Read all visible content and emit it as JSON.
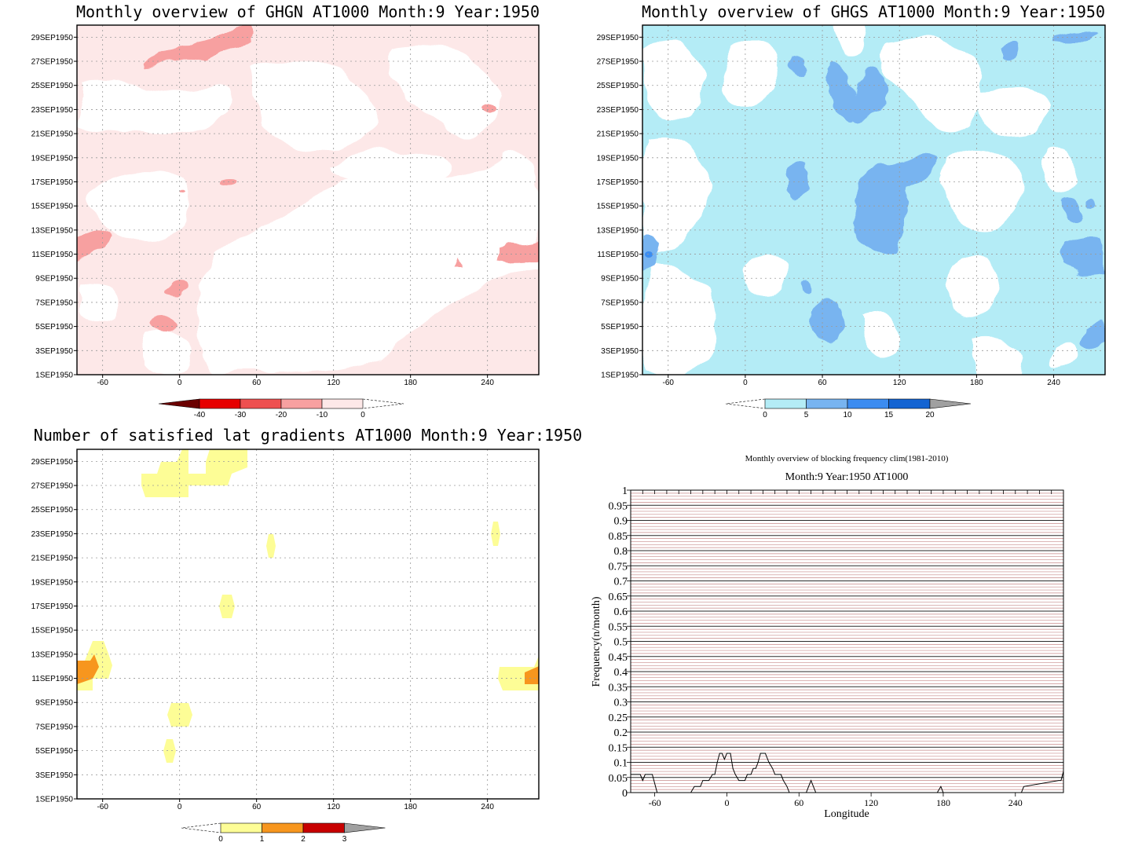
{
  "chart_data": [
    {
      "type": "heatmap",
      "title": "Monthly overview of GHGN AT1000 Month:9 Year:1950",
      "xticks": [
        "-60",
        "0",
        "60",
        "120",
        "180",
        "240"
      ],
      "yticks": [
        "1SEP1950",
        "3SEP1950",
        "5SEP1950",
        "7SEP1950",
        "9SEP1950",
        "11SEP1950",
        "13SEP1950",
        "15SEP1950",
        "17SEP1950",
        "19SEP1950",
        "21SEP1950",
        "23SEP1950",
        "25SEP1950",
        "27SEP1950",
        "29SEP1950"
      ],
      "xlim": [
        -80,
        280
      ],
      "grid": true,
      "colorbar": {
        "labels": [
          "-40",
          "-30",
          "-20",
          "-10",
          "0"
        ],
        "colors": [
          "#6b0000",
          "#e60000",
          "#ee5050",
          "#f7a0a0",
          "#fde8e8"
        ]
      }
    },
    {
      "type": "heatmap",
      "title": "Monthly overview of GHGS AT1000 Month:9 Year:1950",
      "xticks": [
        "-60",
        "0",
        "60",
        "120",
        "180",
        "240"
      ],
      "yticks": [
        "1SEP1950",
        "3SEP1950",
        "5SEP1950",
        "7SEP1950",
        "9SEP1950",
        "11SEP1950",
        "13SEP1950",
        "15SEP1950",
        "17SEP1950",
        "19SEP1950",
        "21SEP1950",
        "23SEP1950",
        "25SEP1950",
        "27SEP1950",
        "29SEP1950"
      ],
      "xlim": [
        -80,
        280
      ],
      "grid": true,
      "colorbar": {
        "labels": [
          "0",
          "5",
          "10",
          "15",
          "20"
        ],
        "colors": [
          "#b4ecf6",
          "#78b4f0",
          "#3c8cf0",
          "#1464d2",
          "#a0a0a0"
        ]
      }
    },
    {
      "type": "heatmap",
      "title": "Number of satisfied lat gradients AT1000 Month:9 Year:1950",
      "xticks": [
        "-60",
        "0",
        "60",
        "120",
        "180",
        "240"
      ],
      "yticks": [
        "1SEP1950",
        "3SEP1950",
        "5SEP1950",
        "7SEP1950",
        "9SEP1950",
        "11SEP1950",
        "13SEP1950",
        "15SEP1950",
        "17SEP1950",
        "19SEP1950",
        "21SEP1950",
        "23SEP1950",
        "25SEP1950",
        "27SEP1950",
        "29SEP1950"
      ],
      "xlim": [
        -80,
        280
      ],
      "grid": true,
      "colorbar": {
        "labels": [
          "0",
          "1",
          "2",
          "3"
        ],
        "colors": [
          "#fdfd96",
          "#f7961e",
          "#c80000",
          "#a0a0a0"
        ]
      }
    },
    {
      "type": "line",
      "title": "Monthly overview of blocking frequency clim(1981-2010)",
      "subtitle": "Month:9 Year:1950  AT1000",
      "xlabel": "Longitude",
      "ylabel": "Frequency(n/month)",
      "xlim": [
        -80,
        280
      ],
      "ylim": [
        0,
        1
      ],
      "xticks": [
        "-60",
        "0",
        "60",
        "120",
        "180",
        "240"
      ],
      "yticks": [
        "0",
        "0.05",
        "0.1",
        "0.15",
        "0.2",
        "0.25",
        "0.3",
        "0.35",
        "0.4",
        "0.45",
        "0.5",
        "0.55",
        "0.6",
        "0.65",
        "0.7",
        "0.75",
        "0.8",
        "0.85",
        "0.9",
        "0.95",
        "1"
      ],
      "series": [
        {
          "x": [
            -80,
            -72,
            -70,
            -68,
            -66,
            -62,
            -58,
            -55,
            -30,
            -27,
            -22,
            -20,
            -15,
            -12,
            -10,
            -8,
            -6,
            -4,
            -2,
            0,
            3,
            5,
            7,
            10,
            12,
            15,
            17,
            20,
            22,
            24,
            26,
            28,
            30,
            32,
            35,
            38,
            40,
            42,
            45,
            47,
            50,
            52,
            54,
            66,
            68,
            70,
            72,
            74,
            76,
            175,
            178,
            180,
            182,
            230,
            245,
            247,
            276,
            278,
            280
          ],
          "y": [
            0.06,
            0.06,
            0.04,
            0.06,
            0.06,
            0.06,
            0.0,
            0.0,
            0.0,
            0.02,
            0.02,
            0.04,
            0.04,
            0.06,
            0.06,
            0.1,
            0.13,
            0.13,
            0.11,
            0.13,
            0.13,
            0.08,
            0.06,
            0.04,
            0.04,
            0.04,
            0.06,
            0.06,
            0.08,
            0.08,
            0.1,
            0.13,
            0.13,
            0.13,
            0.1,
            0.08,
            0.06,
            0.06,
            0.06,
            0.04,
            0.02,
            0.0,
            0.0,
            0.0,
            0.02,
            0.04,
            0.02,
            0.0,
            0.0,
            0.0,
            0.02,
            0.0,
            0.0,
            0.0,
            0.0,
            0.02,
            0.04,
            0.04,
            0.07
          ]
        }
      ]
    }
  ]
}
